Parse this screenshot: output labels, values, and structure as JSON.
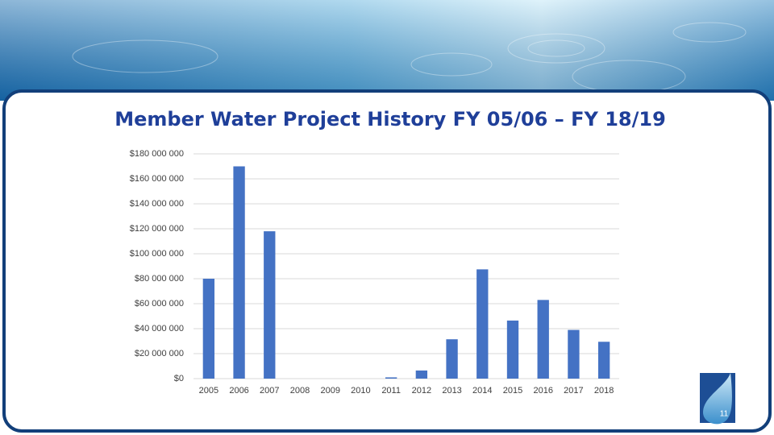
{
  "chart_data": {
    "type": "bar",
    "title": "Member Water Project History FY 05/06 – FY 18/19",
    "categories": [
      "2005",
      "2006",
      "2007",
      "2008",
      "2009",
      "2010",
      "2011",
      "2012",
      "2013",
      "2014",
      "2015",
      "2016",
      "2017",
      "2018"
    ],
    "values": [
      80000000,
      170000000,
      118000000,
      0,
      0,
      0,
      1000000,
      6500000,
      31500000,
      87500000,
      46500000,
      63000000,
      39000000,
      29500000
    ],
    "color": "#4472c4",
    "ylim": [
      0,
      180000000
    ],
    "yticks": [
      {
        "value": 0,
        "label": "$0"
      },
      {
        "value": 20000000,
        "label": "$20 000 000"
      },
      {
        "value": 40000000,
        "label": "$40 000 000"
      },
      {
        "value": 60000000,
        "label": "$60 000 000"
      },
      {
        "value": 80000000,
        "label": "$80 000 000"
      },
      {
        "value": 100000000,
        "label": "$100 000 000"
      },
      {
        "value": 120000000,
        "label": "$120 000 000"
      },
      {
        "value": 140000000,
        "label": "$140 000 000"
      },
      {
        "value": 160000000,
        "label": "$160 000 000"
      },
      {
        "value": 180000000,
        "label": "$180 000 000"
      }
    ],
    "grid": true
  },
  "page_number": "11"
}
